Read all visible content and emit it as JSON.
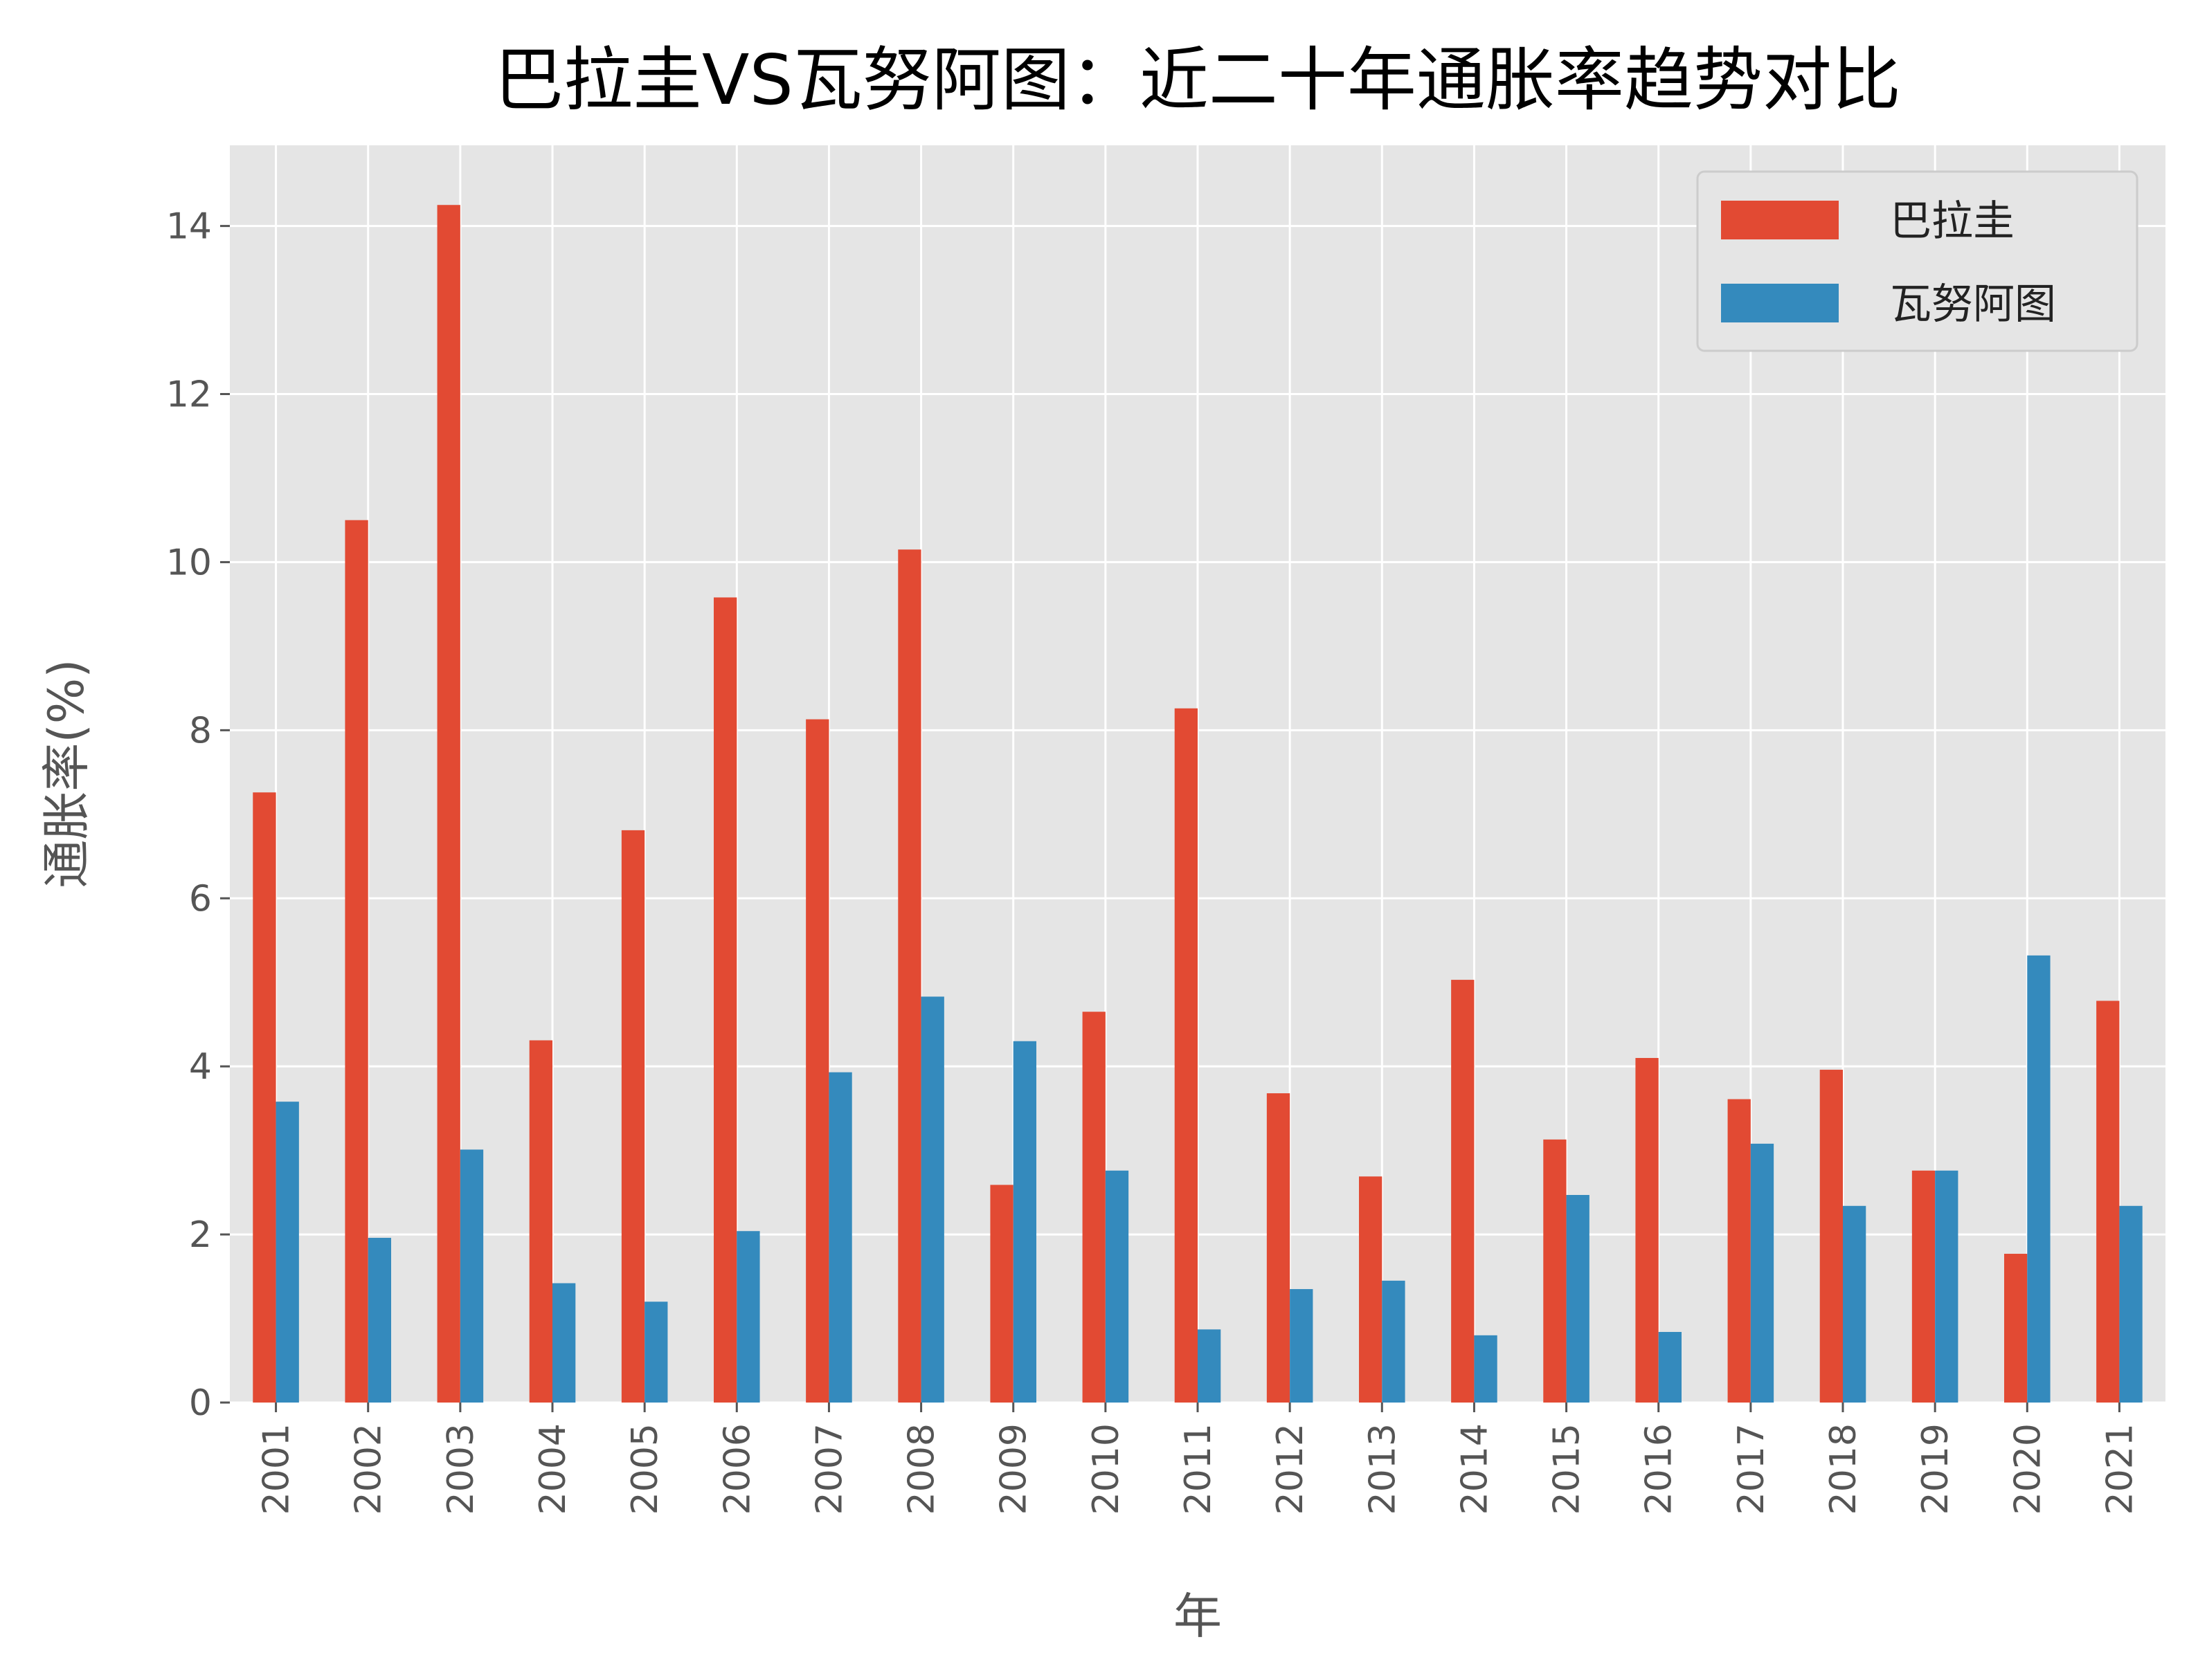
{
  "chart_data": {
    "type": "bar",
    "title": "巴拉圭VS瓦努阿图：近二十年通胀率趋势对比",
    "xlabel": "年",
    "ylabel": "通胀率(%)",
    "categories": [
      "2001",
      "2002",
      "2003",
      "2004",
      "2005",
      "2006",
      "2007",
      "2008",
      "2009",
      "2010",
      "2011",
      "2012",
      "2013",
      "2014",
      "2015",
      "2016",
      "2017",
      "2018",
      "2019",
      "2020",
      "2021"
    ],
    "series": [
      {
        "name": "巴拉圭",
        "color": "#E24A33",
        "values": [
          7.26,
          10.5,
          14.25,
          4.31,
          6.81,
          9.58,
          8.13,
          10.15,
          2.59,
          4.65,
          8.26,
          3.68,
          2.69,
          5.03,
          3.13,
          4.1,
          3.61,
          3.96,
          2.76,
          1.77,
          4.78
        ]
      },
      {
        "name": "瓦努阿图",
        "color": "#348ABD",
        "values": [
          3.58,
          1.96,
          3.01,
          1.42,
          1.2,
          2.04,
          3.93,
          4.83,
          4.3,
          2.76,
          0.87,
          1.35,
          1.45,
          0.8,
          2.47,
          0.84,
          3.08,
          2.34,
          2.76,
          5.32,
          2.34
        ]
      }
    ],
    "yticks": [
      "0",
      "2",
      "4",
      "6",
      "8",
      "10",
      "12",
      "14"
    ],
    "ylim": [
      0,
      14.96
    ],
    "grid": true,
    "legend_position": "top-right",
    "background": "#E5E5E5"
  }
}
